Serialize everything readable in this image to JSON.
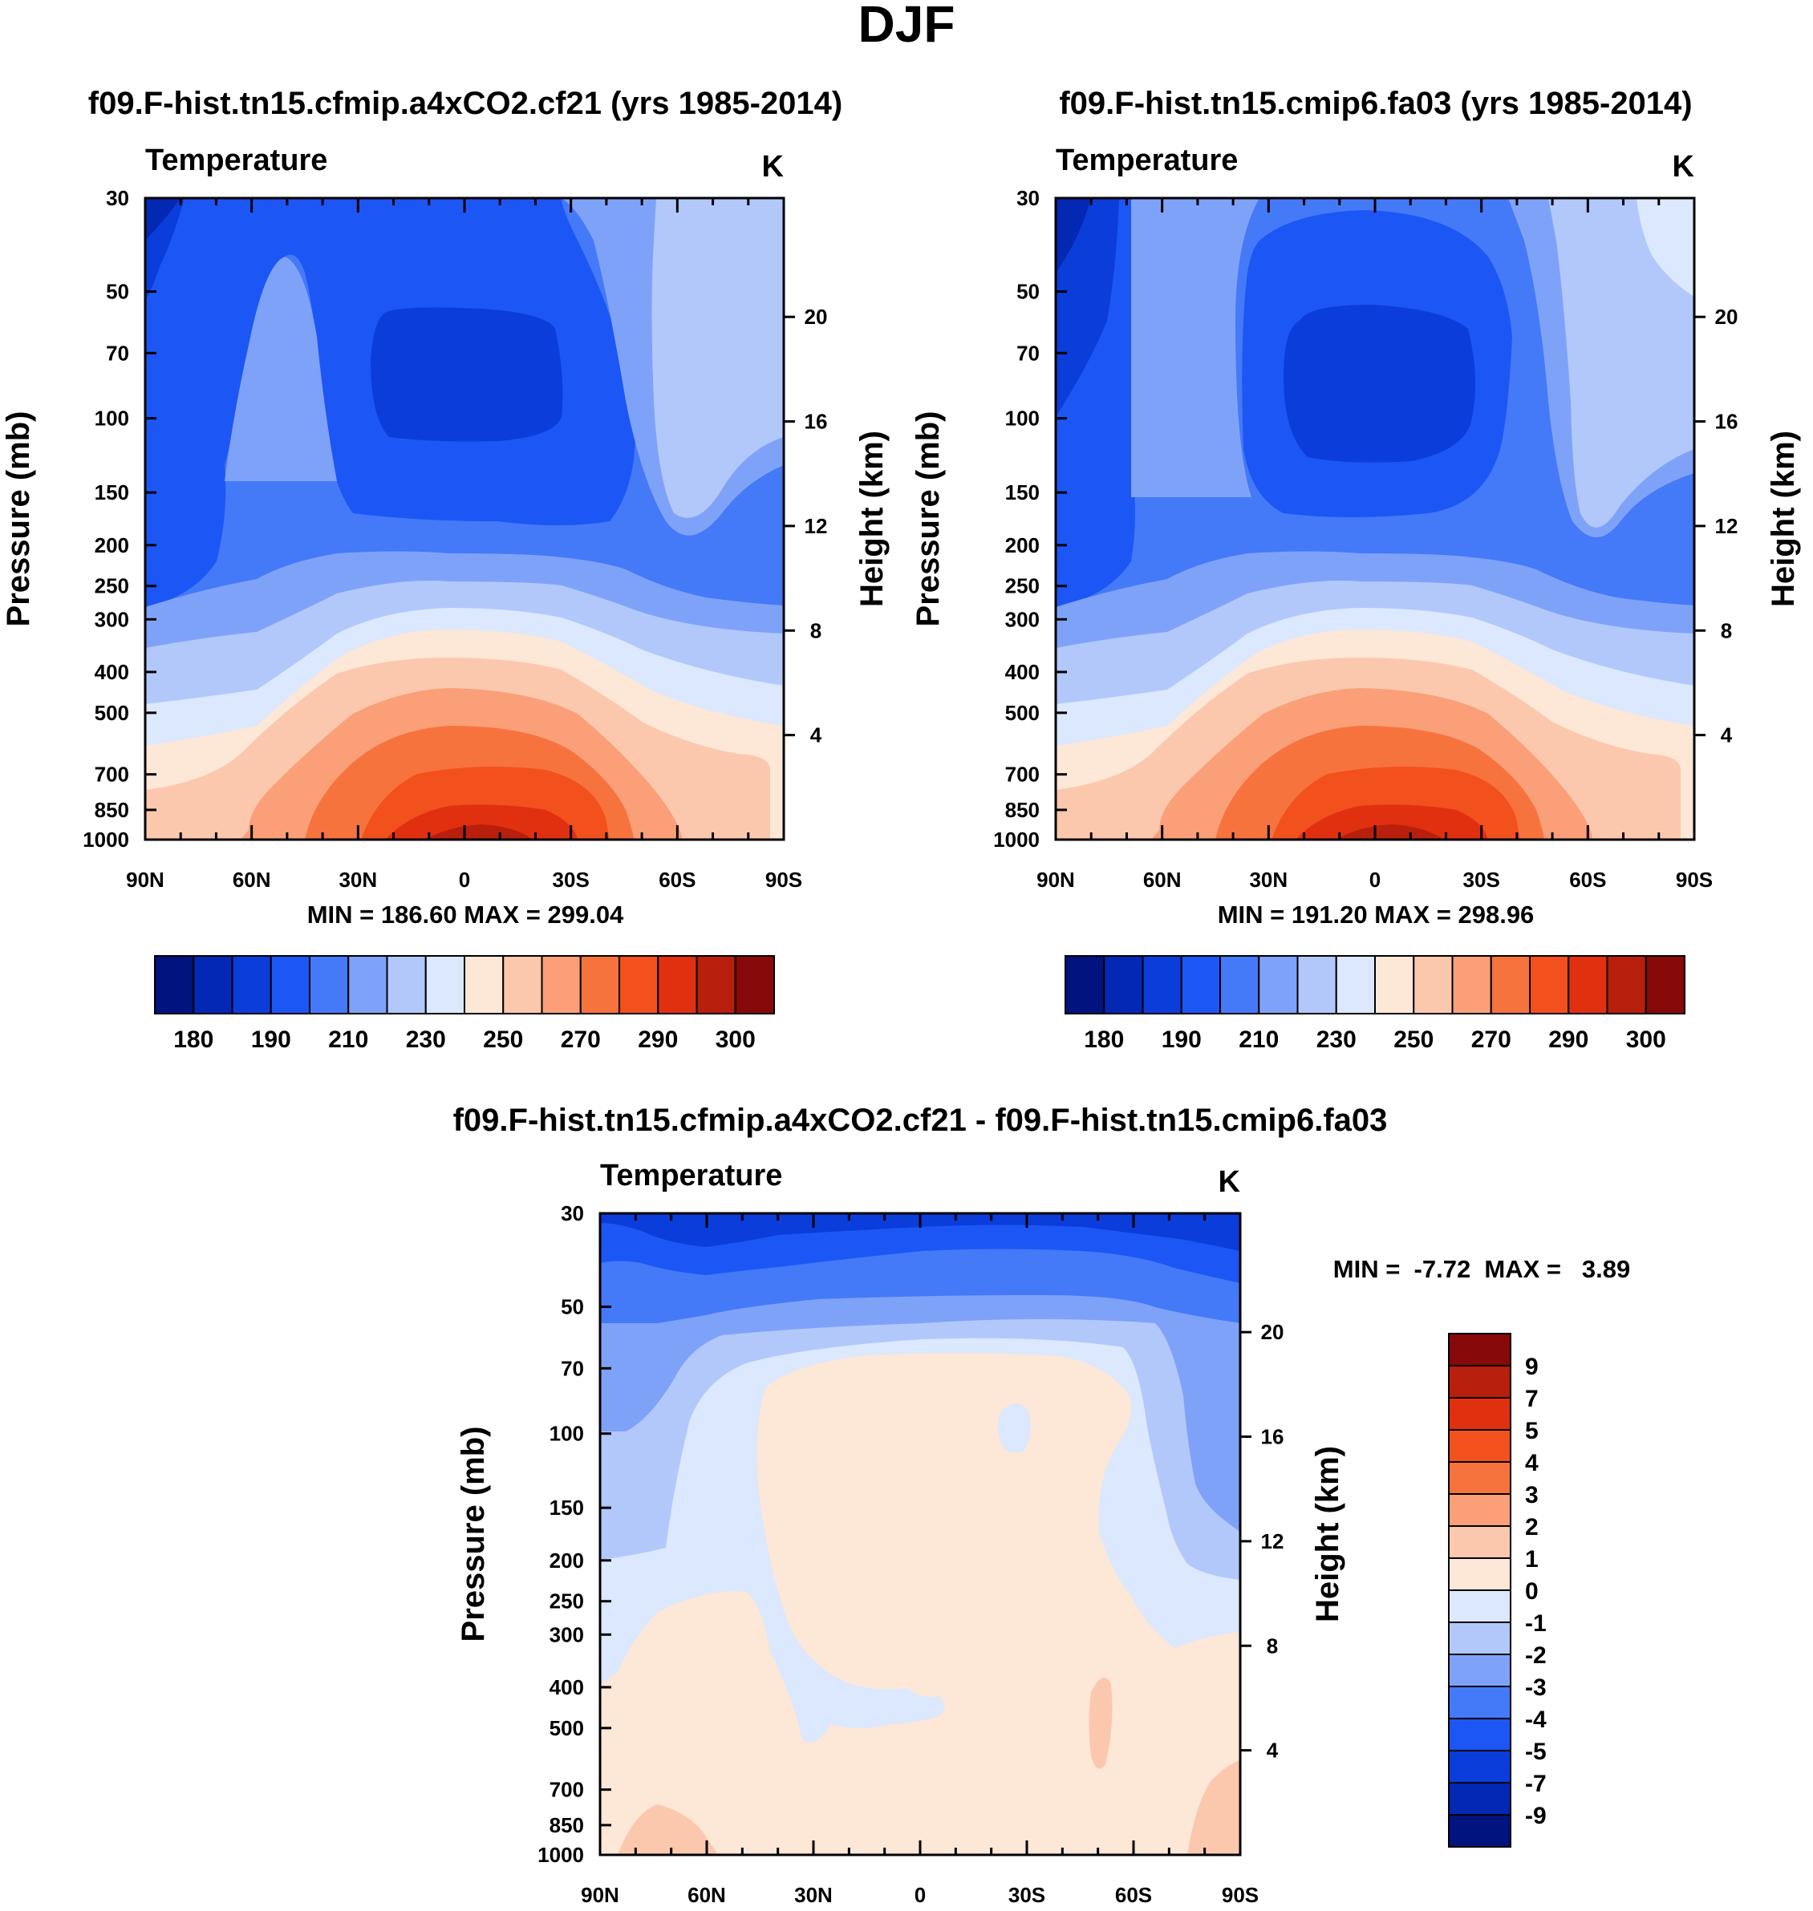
{
  "figure": {
    "main_title": "DJF"
  },
  "palette": {
    "colors": [
      "#00137f",
      "#0228b4",
      "#0b3ddb",
      "#1c56f5",
      "#4479f7",
      "#7fa2f9",
      "#b2c8fb",
      "#dbe8fd",
      "#fde7d7",
      "#fcc8ad",
      "#fa9f78",
      "#f7733e",
      "#f2501c",
      "#e03010",
      "#b81f0c",
      "#870909"
    ]
  },
  "chart_data": [
    {
      "id": "panel_a",
      "type": "heatmap",
      "title": "f09.F-hist.tn15.cfmip.a4xCO2.cf21 (yrs 1985-2014)",
      "variable": "Temperature",
      "units": "K",
      "xlabel": "",
      "ylabel": "Pressure (mb)",
      "ylabel_right": "Height (km)",
      "x_ticks": [
        "90N",
        "60N",
        "30N",
        "0",
        "30S",
        "60S",
        "90S"
      ],
      "x_values": [
        90,
        60,
        30,
        0,
        -30,
        -60,
        -90
      ],
      "y_ticks": [
        "30",
        "50",
        "70",
        "100",
        "150",
        "200",
        "250",
        "300",
        "400",
        "500",
        "700",
        "850",
        "1000"
      ],
      "y_values": [
        30,
        50,
        70,
        100,
        150,
        200,
        250,
        300,
        400,
        500,
        700,
        850,
        1000
      ],
      "y_right_ticks": [
        "20",
        "16",
        "12",
        "8",
        "4"
      ],
      "y_right_values": [
        20,
        16,
        12,
        8,
        4
      ],
      "min": 186.6,
      "max": 299.04,
      "stats_text": "MIN = 186.60  MAX = 299.04",
      "colorbar_labels": [
        "180",
        "190",
        "210",
        "230",
        "250",
        "270",
        "290",
        "300"
      ],
      "colorbar_levels": [
        180,
        185,
        190,
        200,
        210,
        220,
        230,
        240,
        250,
        260,
        270,
        280,
        290,
        295,
        300
      ]
    },
    {
      "id": "panel_b",
      "type": "heatmap",
      "title": "f09.F-hist.tn15.cmip6.fa03 (yrs 1985-2014)",
      "variable": "Temperature",
      "units": "K",
      "xlabel": "",
      "ylabel": "Pressure (mb)",
      "ylabel_right": "Height (km)",
      "x_ticks": [
        "90N",
        "60N",
        "30N",
        "0",
        "30S",
        "60S",
        "90S"
      ],
      "x_values": [
        90,
        60,
        30,
        0,
        -30,
        -60,
        -90
      ],
      "y_ticks": [
        "30",
        "50",
        "70",
        "100",
        "150",
        "200",
        "250",
        "300",
        "400",
        "500",
        "700",
        "850",
        "1000"
      ],
      "y_values": [
        30,
        50,
        70,
        100,
        150,
        200,
        250,
        300,
        400,
        500,
        700,
        850,
        1000
      ],
      "y_right_ticks": [
        "20",
        "16",
        "12",
        "8",
        "4"
      ],
      "y_right_values": [
        20,
        16,
        12,
        8,
        4
      ],
      "min": 191.2,
      "max": 298.96,
      "stats_text": "MIN = 191.20  MAX = 298.96",
      "colorbar_labels": [
        "180",
        "190",
        "210",
        "230",
        "250",
        "270",
        "290",
        "300"
      ],
      "colorbar_levels": [
        180,
        185,
        190,
        200,
        210,
        220,
        230,
        240,
        250,
        260,
        270,
        280,
        290,
        295,
        300
      ]
    },
    {
      "id": "panel_diff",
      "type": "heatmap",
      "title": "f09.F-hist.tn15.cfmip.a4xCO2.cf21 - f09.F-hist.tn15.cmip6.fa03",
      "variable": "Temperature",
      "units": "K",
      "xlabel": "",
      "ylabel": "Pressure (mb)",
      "ylabel_right": "Height (km)",
      "x_ticks": [
        "90N",
        "60N",
        "30N",
        "0",
        "30S",
        "60S",
        "90S"
      ],
      "x_values": [
        90,
        60,
        30,
        0,
        -30,
        -60,
        -90
      ],
      "y_ticks": [
        "30",
        "50",
        "70",
        "100",
        "150",
        "200",
        "250",
        "300",
        "400",
        "500",
        "700",
        "850",
        "1000"
      ],
      "y_values": [
        30,
        50,
        70,
        100,
        150,
        200,
        250,
        300,
        400,
        500,
        700,
        850,
        1000
      ],
      "y_right_ticks": [
        "20",
        "16",
        "12",
        "8",
        "4"
      ],
      "y_right_values": [
        20,
        16,
        12,
        8,
        4
      ],
      "min": -7.72,
      "max": 3.89,
      "stats_text": "MIN =  -7.72  MAX =   3.89",
      "colorbar_labels": [
        "9",
        "7",
        "5",
        "4",
        "3",
        "2",
        "1",
        "0",
        "-1",
        "-2",
        "-3",
        "-4",
        "-5",
        "-7",
        "-9"
      ],
      "colorbar_levels": [
        9,
        7,
        5,
        4,
        3,
        2,
        1,
        0,
        -1,
        -2,
        -3,
        -4,
        -5,
        -7,
        -9
      ]
    }
  ]
}
